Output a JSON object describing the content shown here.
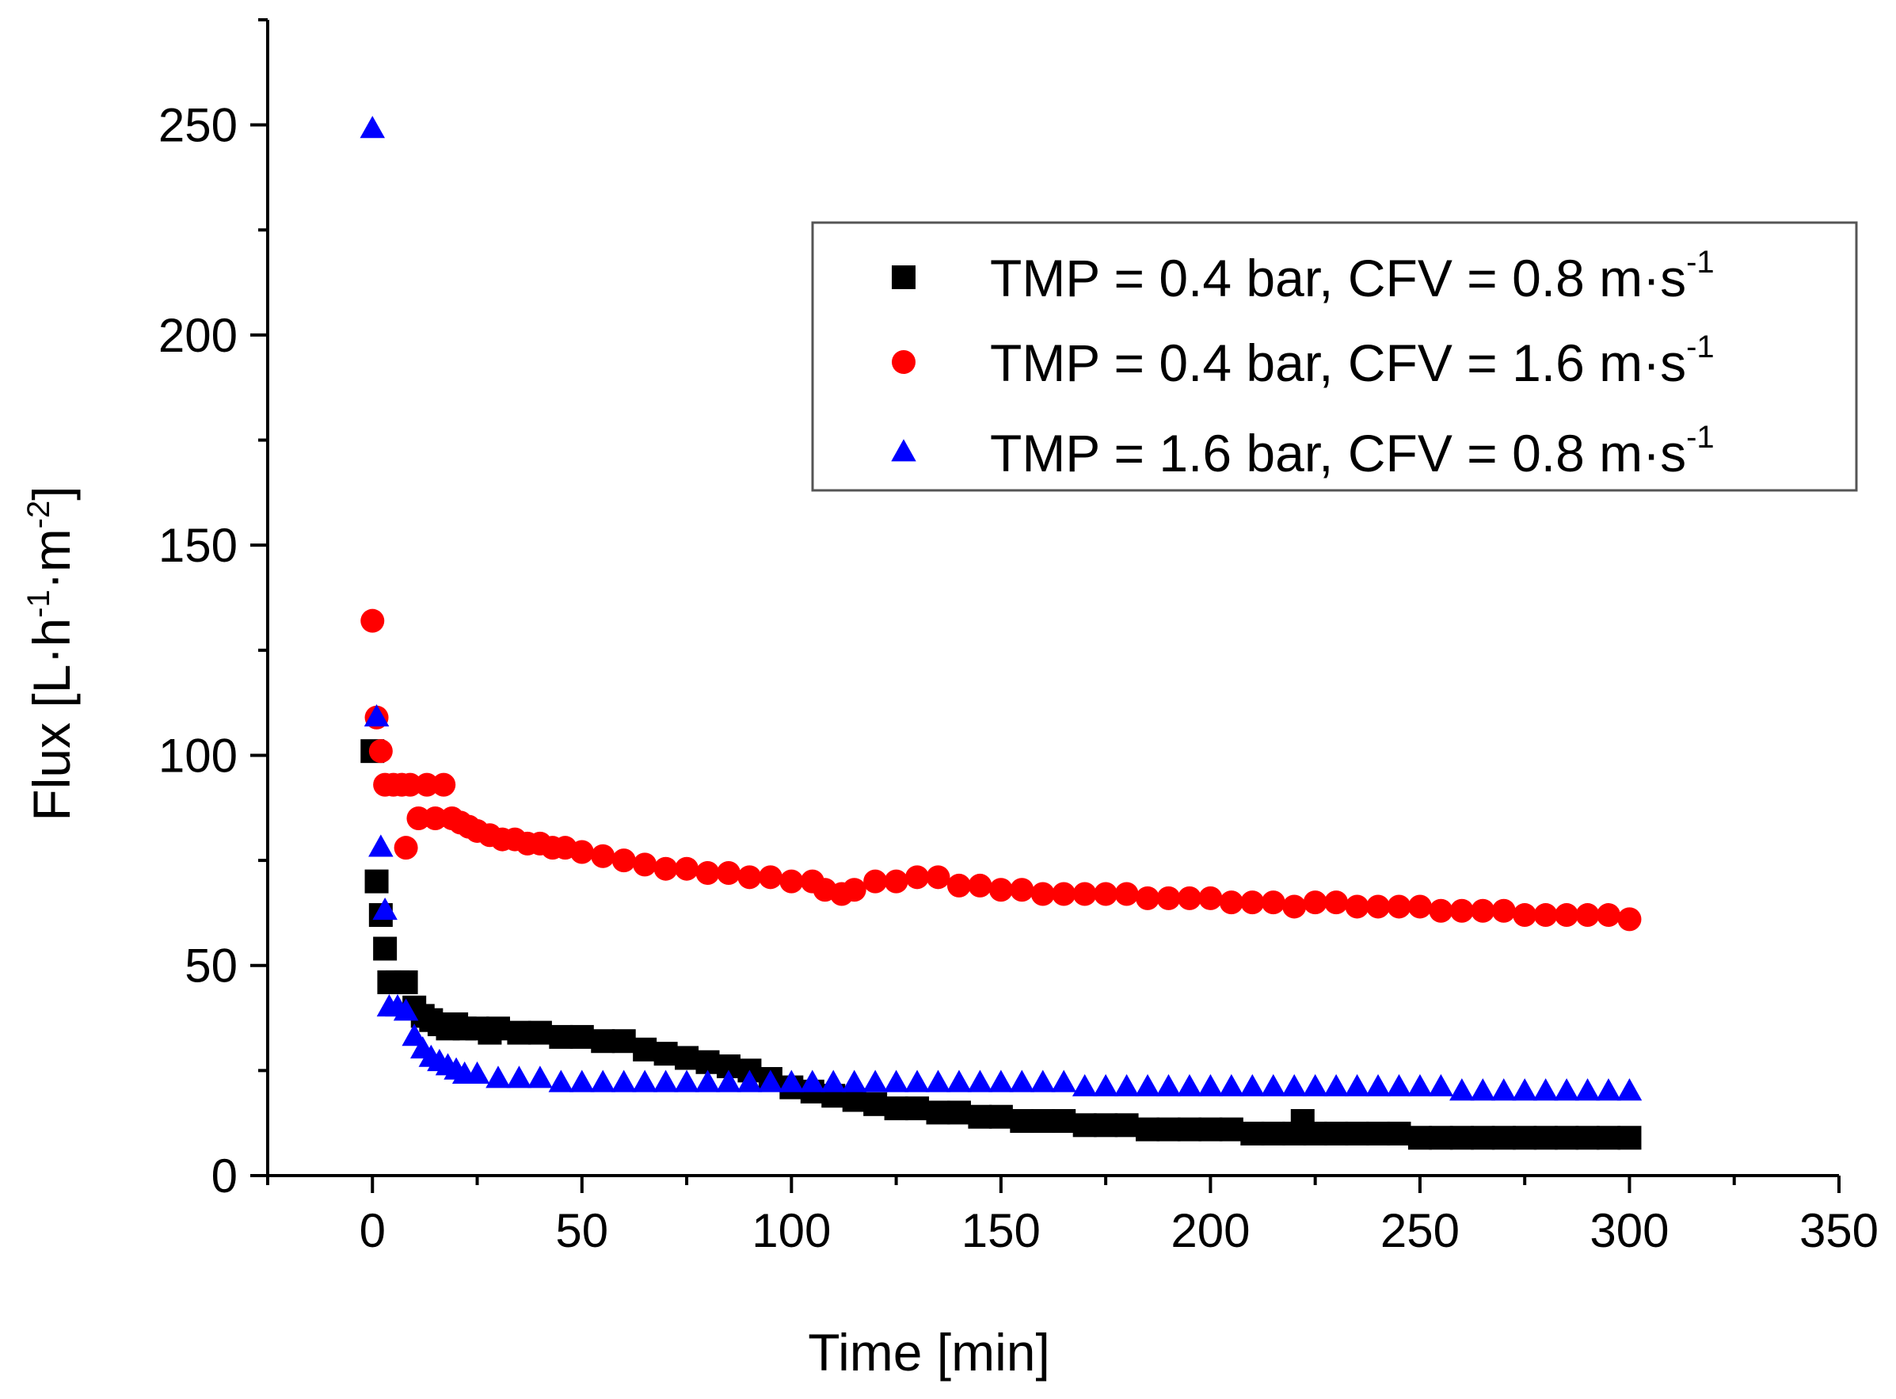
{
  "chart_data": {
    "type": "scatter",
    "title": "",
    "xlabel": "Time [min]",
    "ylabel": "Flux [L·h-1·m-2]",
    "ylabel_parts": {
      "prefix": "Flux [L·h",
      "exp1": "-1",
      "middle": "·m",
      "exp2": "-2",
      "suffix": "]"
    },
    "xlim": [
      -25,
      350
    ],
    "ylim": [
      0,
      275
    ],
    "xticks": [
      0,
      50,
      100,
      150,
      200,
      250,
      300,
      350
    ],
    "yticks": [
      0,
      50,
      100,
      150,
      200,
      250
    ],
    "grid": false,
    "legend_position": "top-right",
    "series": [
      {
        "name": "TMP = 0.4 bar, CFV = 0.8 m·s-1",
        "label_main": "TMP = 0.4 bar, CFV = 0.8 m·s",
        "label_sup": "-1",
        "marker": "square",
        "color": "#000000",
        "points": [
          [
            0,
            101
          ],
          [
            1,
            70
          ],
          [
            2,
            62
          ],
          [
            3,
            54
          ],
          [
            4,
            46
          ],
          [
            6,
            46
          ],
          [
            8,
            46
          ],
          [
            10,
            40
          ],
          [
            12,
            38
          ],
          [
            14,
            37
          ],
          [
            16,
            36
          ],
          [
            18,
            35
          ],
          [
            20,
            36
          ],
          [
            22,
            35
          ],
          [
            25,
            35
          ],
          [
            28,
            34
          ],
          [
            30,
            35
          ],
          [
            35,
            34
          ],
          [
            40,
            34
          ],
          [
            45,
            33
          ],
          [
            50,
            33
          ],
          [
            55,
            32
          ],
          [
            60,
            32
          ],
          [
            65,
            30
          ],
          [
            70,
            29
          ],
          [
            75,
            28
          ],
          [
            80,
            27
          ],
          [
            85,
            26
          ],
          [
            90,
            25
          ],
          [
            95,
            23
          ],
          [
            100,
            21
          ],
          [
            105,
            20
          ],
          [
            110,
            19
          ],
          [
            115,
            18
          ],
          [
            120,
            17
          ],
          [
            125,
            16
          ],
          [
            130,
            16
          ],
          [
            135,
            15
          ],
          [
            140,
            15
          ],
          [
            145,
            14
          ],
          [
            150,
            14
          ],
          [
            155,
            13
          ],
          [
            160,
            13
          ],
          [
            165,
            13
          ],
          [
            170,
            12
          ],
          [
            175,
            12
          ],
          [
            180,
            12
          ],
          [
            185,
            11
          ],
          [
            190,
            11
          ],
          [
            195,
            11
          ],
          [
            200,
            11
          ],
          [
            205,
            11
          ],
          [
            210,
            10
          ],
          [
            215,
            10
          ],
          [
            220,
            10
          ],
          [
            222,
            13
          ],
          [
            225,
            10
          ],
          [
            230,
            10
          ],
          [
            235,
            10
          ],
          [
            240,
            10
          ],
          [
            245,
            10
          ],
          [
            250,
            9
          ],
          [
            255,
            9
          ],
          [
            260,
            9
          ],
          [
            265,
            9
          ],
          [
            270,
            9
          ],
          [
            275,
            9
          ],
          [
            280,
            9
          ],
          [
            285,
            9
          ],
          [
            290,
            9
          ],
          [
            295,
            9
          ],
          [
            300,
            9
          ]
        ]
      },
      {
        "name": "TMP = 0.4 bar, CFV = 1.6 m·s-1",
        "label_main": "TMP = 0.4 bar, CFV = 1.6 m·s",
        "label_sup": "-1",
        "marker": "circle",
        "color": "#ff0000",
        "points": [
          [
            0,
            132
          ],
          [
            1,
            109
          ],
          [
            2,
            101
          ],
          [
            3,
            93
          ],
          [
            5,
            93
          ],
          [
            7,
            93
          ],
          [
            9,
            93
          ],
          [
            11,
            85
          ],
          [
            13,
            93
          ],
          [
            15,
            85
          ],
          [
            17,
            93
          ],
          [
            19,
            85
          ],
          [
            8,
            78
          ],
          [
            21,
            84
          ],
          [
            23,
            83
          ],
          [
            25,
            82
          ],
          [
            28,
            81
          ],
          [
            31,
            80
          ],
          [
            34,
            80
          ],
          [
            37,
            79
          ],
          [
            40,
            79
          ],
          [
            43,
            78
          ],
          [
            46,
            78
          ],
          [
            50,
            77
          ],
          [
            55,
            76
          ],
          [
            60,
            75
          ],
          [
            65,
            74
          ],
          [
            70,
            73
          ],
          [
            75,
            73
          ],
          [
            80,
            72
          ],
          [
            85,
            72
          ],
          [
            90,
            71
          ],
          [
            95,
            71
          ],
          [
            100,
            70
          ],
          [
            105,
            70
          ],
          [
            108,
            68
          ],
          [
            112,
            67
          ],
          [
            115,
            68
          ],
          [
            120,
            70
          ],
          [
            125,
            70
          ],
          [
            130,
            71
          ],
          [
            135,
            71
          ],
          [
            140,
            69
          ],
          [
            145,
            69
          ],
          [
            150,
            68
          ],
          [
            155,
            68
          ],
          [
            160,
            67
          ],
          [
            165,
            67
          ],
          [
            170,
            67
          ],
          [
            175,
            67
          ],
          [
            180,
            67
          ],
          [
            185,
            66
          ],
          [
            190,
            66
          ],
          [
            195,
            66
          ],
          [
            200,
            66
          ],
          [
            205,
            65
          ],
          [
            210,
            65
          ],
          [
            215,
            65
          ],
          [
            220,
            64
          ],
          [
            225,
            65
          ],
          [
            230,
            65
          ],
          [
            235,
            64
          ],
          [
            240,
            64
          ],
          [
            245,
            64
          ],
          [
            250,
            64
          ],
          [
            255,
            63
          ],
          [
            260,
            63
          ],
          [
            265,
            63
          ],
          [
            270,
            63
          ],
          [
            275,
            62
          ],
          [
            280,
            62
          ],
          [
            285,
            62
          ],
          [
            290,
            62
          ],
          [
            295,
            62
          ],
          [
            300,
            61
          ]
        ]
      },
      {
        "name": "TMP = 1.6 bar, CFV = 0.8 m·s-1",
        "label_main": "TMP = 1.6 bar, CFV = 0.8 m·s",
        "label_sup": "-1",
        "marker": "triangle",
        "color": "#0000ff",
        "points": [
          [
            0,
            249
          ],
          [
            1,
            109
          ],
          [
            2,
            78
          ],
          [
            3,
            63
          ],
          [
            4,
            40
          ],
          [
            6,
            40
          ],
          [
            8,
            39
          ],
          [
            10,
            33
          ],
          [
            12,
            30
          ],
          [
            14,
            28
          ],
          [
            16,
            27
          ],
          [
            18,
            26
          ],
          [
            20,
            25
          ],
          [
            22,
            24
          ],
          [
            25,
            24
          ],
          [
            30,
            23
          ],
          [
            35,
            23
          ],
          [
            40,
            23
          ],
          [
            45,
            22
          ],
          [
            50,
            22
          ],
          [
            55,
            22
          ],
          [
            60,
            22
          ],
          [
            65,
            22
          ],
          [
            70,
            22
          ],
          [
            75,
            22
          ],
          [
            80,
            22
          ],
          [
            85,
            22
          ],
          [
            90,
            22
          ],
          [
            95,
            22
          ],
          [
            100,
            22
          ],
          [
            105,
            22
          ],
          [
            110,
            22
          ],
          [
            115,
            22
          ],
          [
            120,
            22
          ],
          [
            125,
            22
          ],
          [
            130,
            22
          ],
          [
            135,
            22
          ],
          [
            140,
            22
          ],
          [
            145,
            22
          ],
          [
            150,
            22
          ],
          [
            155,
            22
          ],
          [
            160,
            22
          ],
          [
            165,
            22
          ],
          [
            170,
            21
          ],
          [
            175,
            21
          ],
          [
            180,
            21
          ],
          [
            185,
            21
          ],
          [
            190,
            21
          ],
          [
            195,
            21
          ],
          [
            200,
            21
          ],
          [
            205,
            21
          ],
          [
            210,
            21
          ],
          [
            215,
            21
          ],
          [
            220,
            21
          ],
          [
            225,
            21
          ],
          [
            230,
            21
          ],
          [
            235,
            21
          ],
          [
            240,
            21
          ],
          [
            245,
            21
          ],
          [
            250,
            21
          ],
          [
            255,
            21
          ],
          [
            260,
            20
          ],
          [
            265,
            20
          ],
          [
            270,
            20
          ],
          [
            275,
            20
          ],
          [
            280,
            20
          ],
          [
            285,
            20
          ],
          [
            290,
            20
          ],
          [
            295,
            20
          ],
          [
            300,
            20
          ]
        ]
      }
    ]
  }
}
